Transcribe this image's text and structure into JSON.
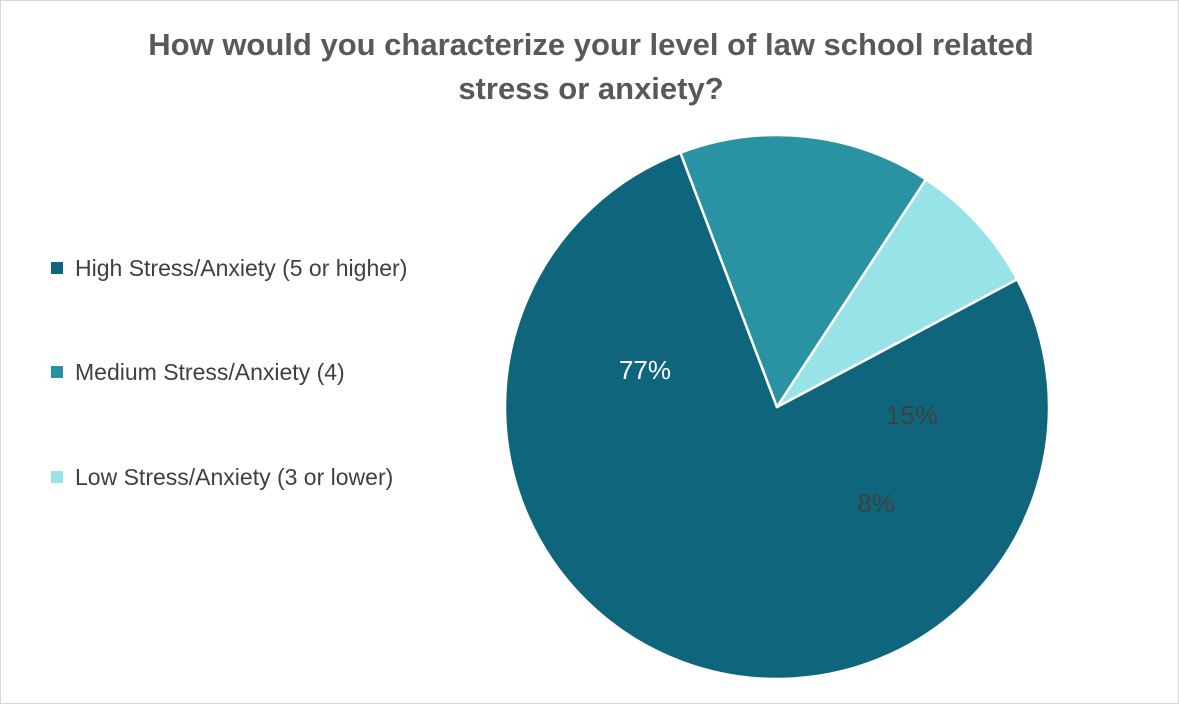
{
  "chart_data": {
    "type": "pie",
    "title": "How would you characterize your level of law school related stress or anxiety?",
    "categories": [
      "High Stress/Anxiety (5 or higher)",
      "Medium Stress/Anxiety (4)",
      "Low Stress/Anxiety (3 or lower)"
    ],
    "values": [
      77,
      15,
      8
    ],
    "data_labels": [
      "77%",
      "15%",
      "8%"
    ],
    "colors": [
      "#0f667c",
      "#2a93a3",
      "#98e3e8"
    ],
    "label_colors": [
      "#ffffff",
      "#404040",
      "#404040"
    ],
    "legend_position": "left",
    "start_angle_deg": 62,
    "direction": "clockwise"
  }
}
